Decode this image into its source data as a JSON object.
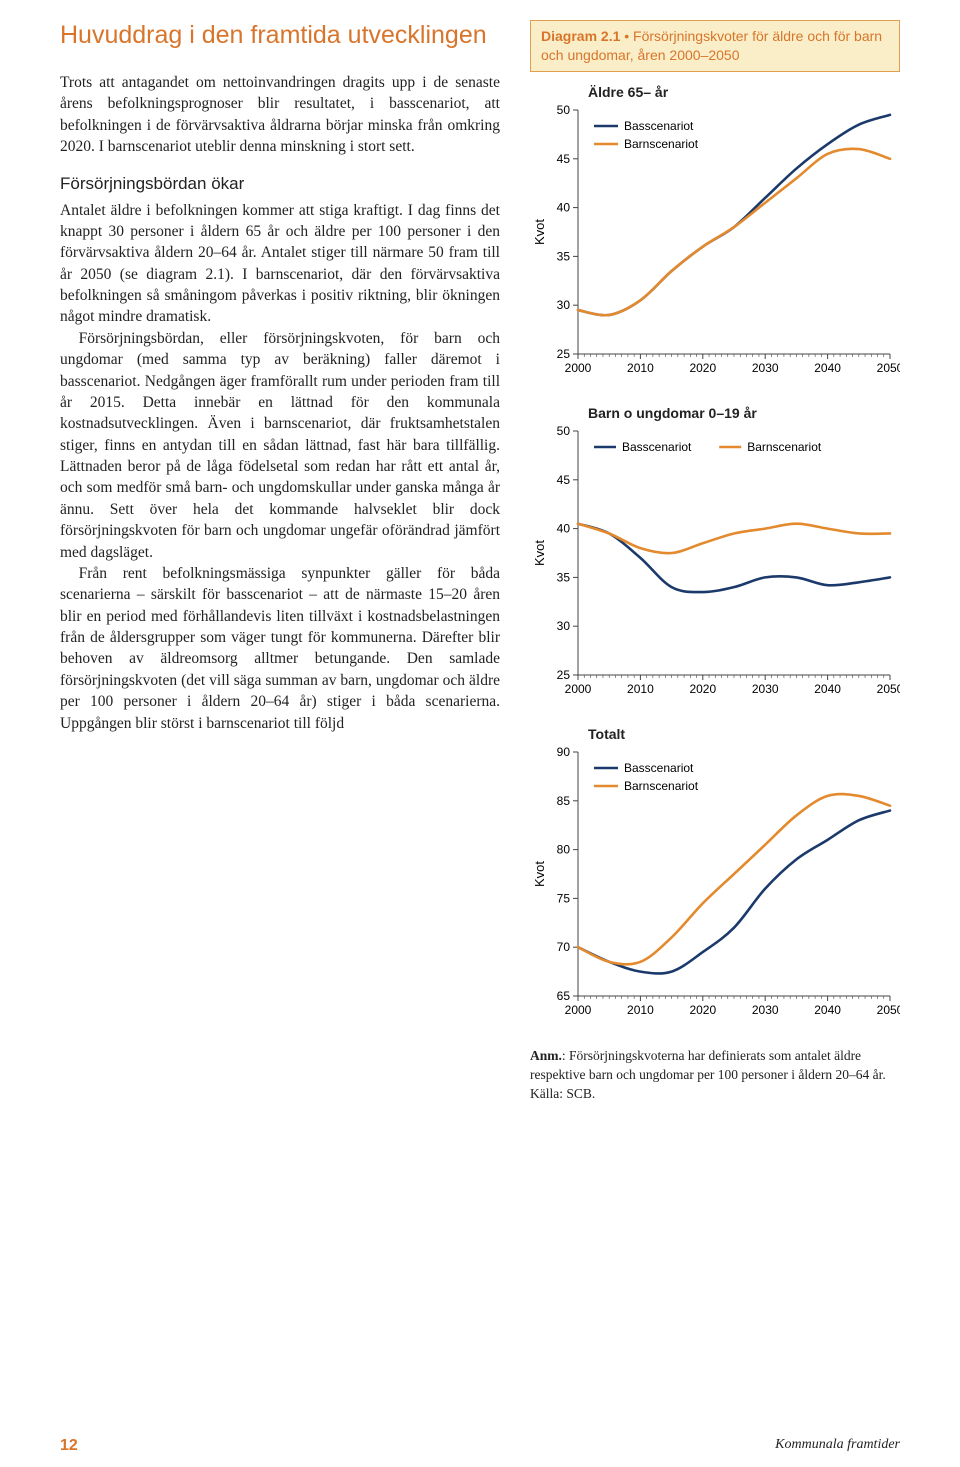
{
  "heading": "Huvuddrag i den framtida utvecklingen",
  "p1": "Trots att antagandet om nettoinvandringen dragits upp i de senaste årens befolkningsprognoser blir resultatet, i basscenariot, att befolkningen i de förvärvsaktiva åldrarna börjar minska från omkring 2020. I barnscenariot uteblir denna minskning i stort sett.",
  "sub1": "Försörjningsbördan ökar",
  "p2": "Antalet äldre i befolkningen kommer att stiga kraftigt. I dag finns det knappt 30 personer i åldern 65 år och äldre per 100 personer i den förvärvsaktiva åldern 20–64 år. Antalet stiger till närmare 50 fram till år 2050 (se diagram 2.1). I barnscenariot, där den förvärvsaktiva befolkningen så småningom påverkas i positiv riktning, blir ökningen något mindre dramatisk.",
  "p3": "Försörjningsbördan, eller försörjningskvoten, för barn och ungdomar (med samma typ av beräkning) faller däremot i basscenariot. Nedgången äger framförallt rum under perioden fram till år 2015. Detta innebär en lättnad för den kommunala kostnadsutvecklingen. Även i barnscenariot, där fruktsamhetstalen stiger, finns en antydan till en sådan lättnad, fast här bara tillfällig. Lättnaden beror på de låga födelsetal som redan har rått ett antal år, och som medför små barn- och ungdomskullar under ganska många år ännu. Sett över hela det kommande halvseklet blir dock försörjningskvoten för barn och ungdomar ungefär oförändrad jämfört med dagsläget.",
  "p4": "Från rent befolkningsmässiga synpunkter gäller för båda scenarierna – särskilt för basscenariot – att de närmaste 15–20 åren blir en period med förhållandevis liten tillväxt i kostnadsbelastningen från de åldersgrupper som väger tungt för kommunerna. Därefter blir behoven av äldreomsorg alltmer betungande. Den samlade försörjningskvoten (det vill säga summan av barn, ungdomar och äldre per 100 personer i åldern 20–64 år) stiger i båda scenarierna. Uppgången blir störst i barnscenariot till följd",
  "diagram_header_b": "Diagram 2.1",
  "diagram_header": " • Försörjningskvoter för äldre och för barn och ungdomar, åren 2000–2050",
  "colors": {
    "bas": "#1b3a6b",
    "barn": "#e48a2e",
    "accent": "#d9752b",
    "grid": "#444",
    "axis_label": "#000"
  },
  "axis_font_size": 12,
  "legend_font_size": 12,
  "line_width": 2.6,
  "chart_a": {
    "title": "Äldre 65– år",
    "ylabel": "Kvot",
    "ylim": [
      25,
      50
    ],
    "ytick_step": 5,
    "xlim": [
      2000,
      2050
    ],
    "xtick_step": 10,
    "legend": [
      "Basscenariot",
      "Barnscenariot"
    ],
    "bas": {
      "x": [
        2000,
        2005,
        2010,
        2015,
        2020,
        2025,
        2030,
        2035,
        2040,
        2045,
        2050
      ],
      "y": [
        29.5,
        29,
        30.5,
        33.5,
        36,
        38,
        41,
        44,
        46.5,
        48.5,
        49.5
      ]
    },
    "barn": {
      "x": [
        2000,
        2005,
        2010,
        2015,
        2020,
        2025,
        2030,
        2035,
        2040,
        2045,
        2050
      ],
      "y": [
        29.5,
        29,
        30.5,
        33.5,
        36,
        38,
        40.5,
        43,
        45.5,
        46,
        45
      ]
    }
  },
  "chart_b": {
    "title": "Barn o ungdomar 0–19 år",
    "ylabel": "Kvot",
    "ylim": [
      25,
      50
    ],
    "ytick_step": 5,
    "xlim": [
      2000,
      2050
    ],
    "xtick_step": 10,
    "legend": [
      "Basscenariot",
      "Barnscenariot"
    ],
    "bas": {
      "x": [
        2000,
        2005,
        2010,
        2015,
        2020,
        2025,
        2030,
        2035,
        2040,
        2045,
        2050
      ],
      "y": [
        40.5,
        39.5,
        37,
        34,
        33.5,
        34,
        35,
        35,
        34.2,
        34.5,
        35
      ]
    },
    "barn": {
      "x": [
        2000,
        2005,
        2010,
        2015,
        2020,
        2025,
        2030,
        2035,
        2040,
        2045,
        2050
      ],
      "y": [
        40.5,
        39.5,
        38,
        37.5,
        38.5,
        39.5,
        40,
        40.5,
        40,
        39.5,
        39.5
      ]
    }
  },
  "chart_c": {
    "title": "Totalt",
    "ylabel": "Kvot",
    "ylim": [
      65,
      90
    ],
    "ytick_step": 5,
    "xlim": [
      2000,
      2050
    ],
    "xtick_step": 10,
    "legend": [
      "Basscenariot",
      "Barnscenariot"
    ],
    "bas": {
      "x": [
        2000,
        2005,
        2010,
        2015,
        2020,
        2025,
        2030,
        2035,
        2040,
        2045,
        2050
      ],
      "y": [
        70,
        68.5,
        67.5,
        67.5,
        69.5,
        72,
        76,
        79,
        81,
        83,
        84
      ]
    },
    "barn": {
      "x": [
        2000,
        2005,
        2010,
        2015,
        2020,
        2025,
        2030,
        2035,
        2040,
        2045,
        2050
      ],
      "y": [
        70,
        68.5,
        68.5,
        71,
        74.5,
        77.5,
        80.5,
        83.5,
        85.5,
        85.5,
        84.5
      ]
    }
  },
  "note_b": "Anm.",
  "note": ": Försörjningskvoterna har definierats som antalet äldre respektive barn och ungdomar per 100 personer i åldern 20–64 år.",
  "note_src": "Källa: SCB.",
  "page_num": "12",
  "publication": "Kommunala framtider"
}
